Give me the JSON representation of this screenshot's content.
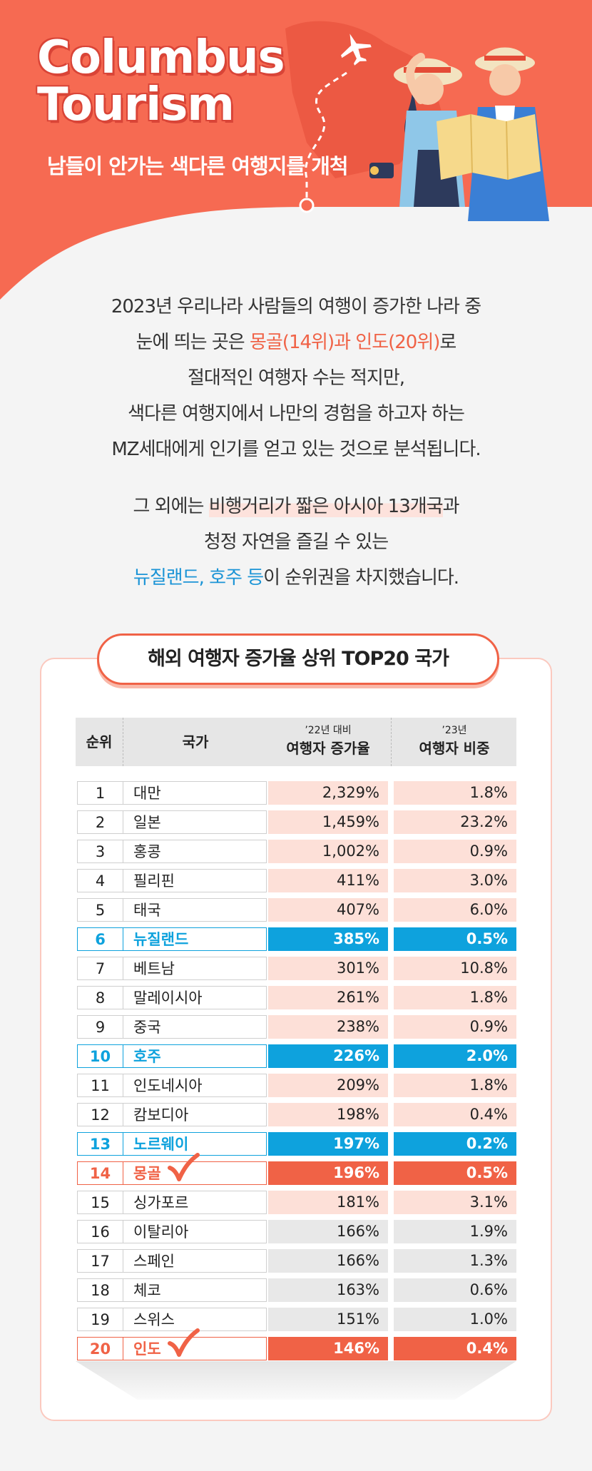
{
  "hero": {
    "title_line1": "Columbus",
    "title_line2": "Tourism",
    "subtitle": "남들이 안가는 색다른 여행지를 개척",
    "colors": {
      "hero_bg": "#f66a52",
      "title_shadow": "#d94437"
    }
  },
  "intro": {
    "p1_line1": "2023년 우리나라 사람들의 여행이 증가한 나라 중",
    "p1_line2_a": "눈에 띄는 곳은 ",
    "p1_line2_hl": "몽골(14위)과 인도(20위)",
    "p1_line2_b": "로",
    "p1_line3": "절대적인 여행자 수는 적지만,",
    "p1_line4": "색다른 여행지에서 나만의 경험을 하고자 하는",
    "p1_line5": "MZ세대에게 인기를 얻고 있는 것으로 분석됩니다.",
    "p2_line1_a": "그 외에는 ",
    "p2_line1_hl": "비행거리가 짧은 아시아 13개국",
    "p2_line1_b": "과",
    "p2_line2": "청정 자연을 즐길 수 있는",
    "p2_line3_hl": "뉴질랜드, 호주 등",
    "p2_line3_b": "이 순위권을 차지했습니다."
  },
  "table": {
    "title": "해외 여행자 증가율 상위 TOP20 국가",
    "headers": {
      "rank": "순위",
      "country": "국가",
      "increase_small": "’22년 대비",
      "increase_big": "여행자 증가율",
      "share_small": "’23년",
      "share_big": "여행자 비중"
    },
    "rows": [
      {
        "rank": "1",
        "country": "대만",
        "increase": "2,329%",
        "share": "1.8%",
        "style": "pink"
      },
      {
        "rank": "2",
        "country": "일본",
        "increase": "1,459%",
        "share": "23.2%",
        "style": "pink"
      },
      {
        "rank": "3",
        "country": "홍콩",
        "increase": "1,002%",
        "share": "0.9%",
        "style": "pink"
      },
      {
        "rank": "4",
        "country": "필리핀",
        "increase": "411%",
        "share": "3.0%",
        "style": "pink"
      },
      {
        "rank": "5",
        "country": "태국",
        "increase": "407%",
        "share": "6.0%",
        "style": "pink"
      },
      {
        "rank": "6",
        "country": "뉴질랜드",
        "increase": "385%",
        "share": "0.5%",
        "style": "blue"
      },
      {
        "rank": "7",
        "country": "베트남",
        "increase": "301%",
        "share": "10.8%",
        "style": "pink"
      },
      {
        "rank": "8",
        "country": "말레이시아",
        "increase": "261%",
        "share": "1.8%",
        "style": "pink"
      },
      {
        "rank": "9",
        "country": "중국",
        "increase": "238%",
        "share": "0.9%",
        "style": "pink"
      },
      {
        "rank": "10",
        "country": "호주",
        "increase": "226%",
        "share": "2.0%",
        "style": "blue"
      },
      {
        "rank": "11",
        "country": "인도네시아",
        "increase": "209%",
        "share": "1.8%",
        "style": "pink"
      },
      {
        "rank": "12",
        "country": "캄보디아",
        "increase": "198%",
        "share": "0.4%",
        "style": "pink"
      },
      {
        "rank": "13",
        "country": "노르웨이",
        "increase": "197%",
        "share": "0.2%",
        "style": "blue"
      },
      {
        "rank": "14",
        "country": "몽골",
        "increase": "196%",
        "share": "0.5%",
        "style": "orange",
        "check": true
      },
      {
        "rank": "15",
        "country": "싱가포르",
        "increase": "181%",
        "share": "3.1%",
        "style": "pink"
      },
      {
        "rank": "16",
        "country": "이탈리아",
        "increase": "166%",
        "share": "1.9%",
        "style": "gray"
      },
      {
        "rank": "17",
        "country": "스페인",
        "increase": "166%",
        "share": "1.3%",
        "style": "gray"
      },
      {
        "rank": "18",
        "country": "체코",
        "increase": "163%",
        "share": "0.6%",
        "style": "gray"
      },
      {
        "rank": "19",
        "country": "스위스",
        "increase": "151%",
        "share": "1.0%",
        "style": "gray"
      },
      {
        "rank": "20",
        "country": "인도",
        "increase": "146%",
        "share": "0.4%",
        "style": "orange",
        "check": true
      }
    ],
    "colors": {
      "blue": "#0ea2dd",
      "orange": "#f06246",
      "pink": "#fde0d8",
      "gray": "#e8e8e8"
    }
  },
  "icons": [
    "airplane-icon",
    "check-icon",
    "travel-couple-illustration"
  ]
}
